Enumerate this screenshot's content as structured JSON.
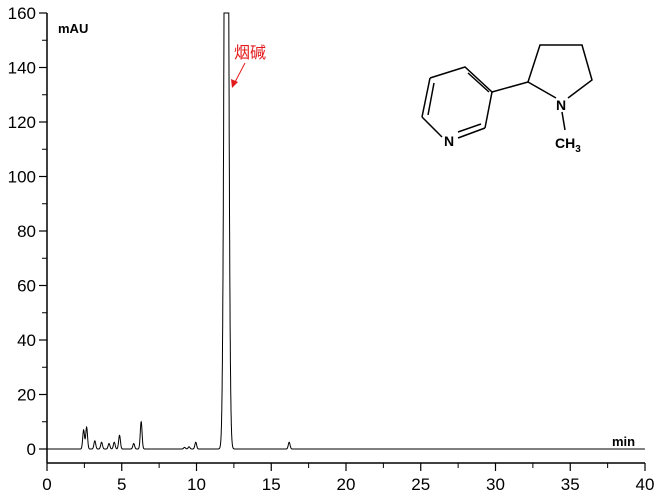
{
  "chart_data": {
    "type": "line",
    "ylabel": "mAU",
    "xlabel": "min",
    "xlim": [
      0,
      40
    ],
    "ylim": [
      0,
      160
    ],
    "x_ticks": [
      0,
      5,
      10,
      15,
      20,
      25,
      30,
      35,
      40
    ],
    "y_ticks": [
      0,
      20,
      40,
      60,
      80,
      100,
      120,
      140,
      160
    ],
    "grid": false,
    "line_color": "#000000",
    "peaks": [
      {
        "rt": 2.45,
        "height": 7
      },
      {
        "rt": 2.65,
        "height": 8
      },
      {
        "rt": 3.2,
        "height": 3
      },
      {
        "rt": 3.65,
        "height": 2.5
      },
      {
        "rt": 4.15,
        "height": 2
      },
      {
        "rt": 4.5,
        "height": 2.5
      },
      {
        "rt": 4.85,
        "height": 5
      },
      {
        "rt": 5.8,
        "height": 2
      },
      {
        "rt": 6.3,
        "height": 10
      },
      {
        "rt": 9.2,
        "height": 0.6
      },
      {
        "rt": 9.5,
        "height": 0.8
      },
      {
        "rt": 9.95,
        "height": 2.5
      },
      {
        "rt": 12.0,
        "height": 400
      },
      {
        "rt": 16.2,
        "height": 2.5
      }
    ],
    "annotations": [
      {
        "text": "烟碱",
        "color": "#e31a1c",
        "points_to_rt": 12.0
      }
    ]
  },
  "structure": {
    "n1": "N",
    "n2": "N",
    "ch3": "CH",
    "ch3_sub": "3"
  }
}
